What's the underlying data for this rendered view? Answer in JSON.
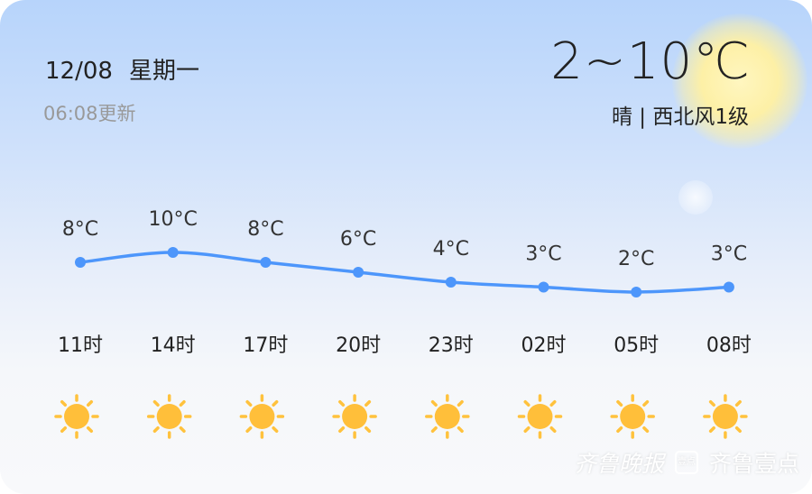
{
  "header": {
    "date": "12/08",
    "weekday": "星期一",
    "updated": "06:08更新",
    "temp_range": "2~10℃",
    "condition": "晴",
    "separator": "|",
    "wind": "西北风1级"
  },
  "chart_data": {
    "type": "line",
    "categories": [
      "11时",
      "14时",
      "17时",
      "20时",
      "23时",
      "02时",
      "05时",
      "08时"
    ],
    "values": [
      8,
      10,
      8,
      6,
      4,
      3,
      2,
      3
    ],
    "labels": [
      "8°C",
      "10°C",
      "8°C",
      "6°C",
      "4°C",
      "3°C",
      "2°C",
      "3°C"
    ],
    "icons": [
      "sun-icon",
      "sun-icon",
      "sun-icon",
      "sun-icon",
      "sun-icon",
      "sun-icon",
      "sun-icon",
      "sun-icon"
    ],
    "line_color": "#4d96fb"
  },
  "watermark": {
    "brand1": "齐鲁晚报",
    "logo": "壹点",
    "brand2": "齐鲁壹点"
  }
}
